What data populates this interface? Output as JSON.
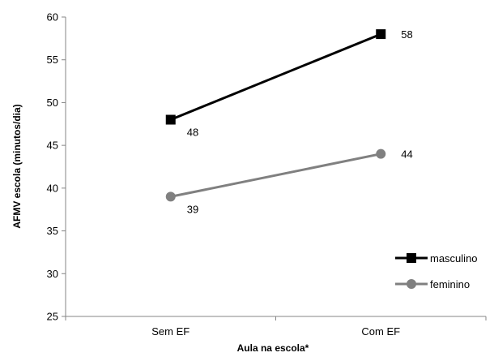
{
  "chart_data": {
    "type": "line",
    "title": "",
    "xlabel": "Aula na escola*",
    "ylabel": "AFMV escola (minutos/dia)",
    "categories": [
      "Sem EF",
      "Com EF"
    ],
    "ylim": [
      25,
      60
    ],
    "yticks": [
      25,
      30,
      35,
      40,
      45,
      50,
      55,
      60
    ],
    "grid": false,
    "legend_position": "bottom-right",
    "series": [
      {
        "name": "masculino",
        "values": [
          48,
          58
        ],
        "color": "#000000",
        "marker": "square"
      },
      {
        "name": "feminino",
        "values": [
          39,
          44
        ],
        "color": "#808080",
        "marker": "circle"
      }
    ]
  }
}
